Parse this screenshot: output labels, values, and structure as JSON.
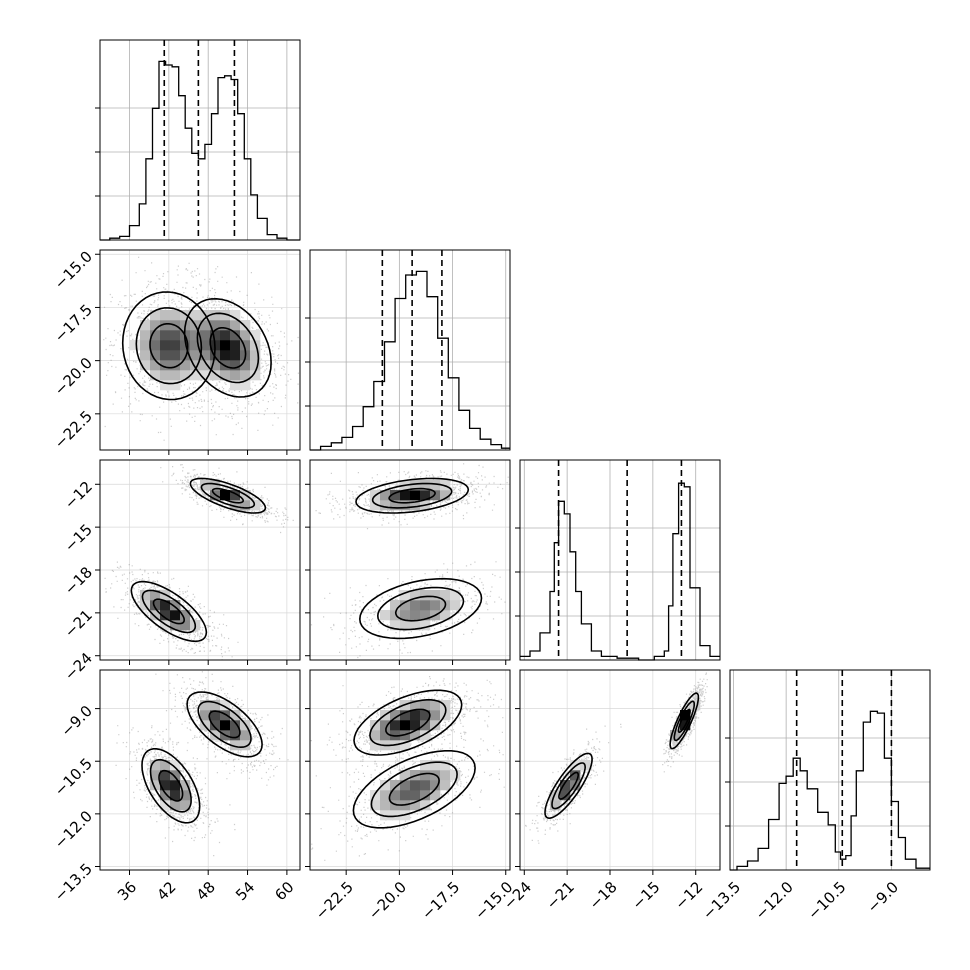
{
  "chart_data": {
    "type": "corner",
    "title": "",
    "grid": true,
    "colors": {
      "line": "#000000",
      "grid": "#b0b0b0",
      "density_dark": "#000000",
      "density_light": "#ffffff"
    },
    "parameters": [
      {
        "label": "",
        "ticks": [
          36,
          42,
          48,
          54,
          60
        ],
        "tick_labels": [
          "36",
          "42",
          "48",
          "54",
          "60"
        ],
        "range": [
          31.5,
          62.0
        ]
      },
      {
        "label": "",
        "ticks": [
          -22.5,
          -20.0,
          -17.5,
          -15.0
        ],
        "tick_labels": [
          "−22.5",
          "−20.0",
          "−17.5",
          "−15.0"
        ],
        "range": [
          -24.2,
          -14.8
        ]
      },
      {
        "label": "",
        "ticks": [
          -24,
          -21,
          -18,
          -15,
          -12
        ],
        "tick_labels": [
          "−24",
          "−21",
          "−18",
          "−15",
          "−12"
        ],
        "range": [
          -24.3,
          -10.3
        ]
      },
      {
        "label": "",
        "ticks": [
          -13.5,
          -12.0,
          -10.5,
          -9.0
        ],
        "tick_labels": [
          "−13.5",
          "−12.0",
          "−10.5",
          "−9.0"
        ],
        "range": [
          -13.6,
          -7.9
        ]
      }
    ],
    "histograms": [
      {
        "param": 0,
        "quantiles": [
          41.3,
          46.5,
          52.0
        ],
        "bin_edges": [
          31.5,
          33.0,
          34.5,
          36.0,
          37.5,
          38.5,
          39.5,
          40.5,
          41.5,
          42.5,
          43.5,
          44.5,
          45.5,
          46.5,
          47.5,
          48.5,
          49.5,
          50.5,
          51.5,
          52.5,
          53.5,
          54.5,
          55.5,
          57.0,
          58.5,
          60.0,
          62.0
        ],
        "counts": [
          0,
          0.01,
          0.02,
          0.08,
          0.2,
          0.45,
          0.73,
          0.99,
          0.97,
          0.96,
          0.8,
          0.62,
          0.48,
          0.45,
          0.53,
          0.7,
          0.9,
          0.91,
          0.89,
          0.7,
          0.45,
          0.25,
          0.12,
          0.03,
          0.01,
          0
        ]
      },
      {
        "param": 1,
        "quantiles": [
          -20.8,
          -19.4,
          -18.0
        ],
        "bin_edges": [
          -24.2,
          -23.7,
          -23.2,
          -22.7,
          -22.2,
          -21.7,
          -21.2,
          -20.7,
          -20.2,
          -19.7,
          -19.2,
          -18.7,
          -18.2,
          -17.7,
          -17.2,
          -16.7,
          -16.2,
          -15.7,
          -15.2,
          -14.8
        ],
        "counts": [
          0.0,
          0.02,
          0.04,
          0.07,
          0.13,
          0.24,
          0.38,
          0.6,
          0.84,
          0.97,
          0.99,
          0.85,
          0.62,
          0.4,
          0.22,
          0.12,
          0.06,
          0.03,
          0.01
        ]
      },
      {
        "param": 2,
        "quantiles": [
          -21.6,
          -16.8,
          -13.0
        ],
        "bin_edges": [
          -24.3,
          -23.6,
          -22.9,
          -22.2,
          -21.9,
          -21.6,
          -21.2,
          -20.8,
          -20.4,
          -20.0,
          -19.3,
          -18.6,
          -17.5,
          -16.0,
          -14.9,
          -14.2,
          -13.9,
          -13.6,
          -13.2,
          -12.8,
          -12.4,
          -11.7,
          -11.0,
          -10.3
        ],
        "counts": [
          0.02,
          0.05,
          0.15,
          0.38,
          0.65,
          0.88,
          0.81,
          0.6,
          0.38,
          0.2,
          0.05,
          0.02,
          0.01,
          0.0,
          0.02,
          0.05,
          0.3,
          0.7,
          0.98,
          0.96,
          0.4,
          0.08,
          0.02
        ]
      },
      {
        "param": 3,
        "quantiles": [
          -11.7,
          -10.4,
          -9.0
        ],
        "bin_edges": [
          -13.6,
          -13.4,
          -13.1,
          -12.8,
          -12.5,
          -12.2,
          -12.0,
          -11.8,
          -11.6,
          -11.4,
          -11.1,
          -10.8,
          -10.6,
          -10.45,
          -10.3,
          -10.15,
          -10.0,
          -9.8,
          -9.6,
          -9.4,
          -9.2,
          -9.0,
          -8.8,
          -8.6,
          -8.3,
          -7.9
        ],
        "counts": [
          0.0,
          0.02,
          0.05,
          0.12,
          0.28,
          0.48,
          0.52,
          0.62,
          0.55,
          0.45,
          0.32,
          0.25,
          0.1,
          0.06,
          0.08,
          0.3,
          0.55,
          0.82,
          0.88,
          0.87,
          0.62,
          0.38,
          0.18,
          0.06,
          0.01
        ]
      }
    ],
    "pairs": [
      {
        "x_param": 0,
        "y_param": 1,
        "modes": [
          {
            "cx": 42.0,
            "cy": -19.3,
            "sx": 3.2,
            "sy": 1.15,
            "rho": -0.05,
            "w": 1.0
          },
          {
            "cx": 51.0,
            "cy": -19.4,
            "sx": 3.0,
            "sy": 1.05,
            "rho": -0.3,
            "w": 1.2
          }
        ]
      },
      {
        "x_param": 0,
        "y_param": 2,
        "modes": [
          {
            "cx": 51.0,
            "cy": -12.8,
            "sx": 2.6,
            "sy": 0.55,
            "rho": -0.7,
            "w": 1.0
          },
          {
            "cx": 42.0,
            "cy": -20.9,
            "sx": 2.6,
            "sy": 0.95,
            "rho": -0.7,
            "w": 1.0
          }
        ]
      },
      {
        "x_param": 0,
        "y_param": 3,
        "modes": [
          {
            "cx": 50.5,
            "cy": -9.45,
            "sx": 2.6,
            "sy": 0.42,
            "rho": -0.62,
            "w": 1.0
          },
          {
            "cx": 42.3,
            "cy": -11.2,
            "sx": 2.0,
            "sy": 0.48,
            "rho": -0.55,
            "w": 1.0
          }
        ]
      },
      {
        "x_param": 1,
        "y_param": 2,
        "modes": [
          {
            "cx": -19.4,
            "cy": -12.8,
            "sx": 1.2,
            "sy": 0.55,
            "rho": 0.35,
            "w": 1.0
          },
          {
            "cx": -19.0,
            "cy": -20.7,
            "sx": 1.3,
            "sy": 0.95,
            "rho": 0.35,
            "w": 0.65
          }
        ]
      },
      {
        "x_param": 1,
        "y_param": 3,
        "modes": [
          {
            "cx": -19.6,
            "cy": -9.4,
            "sx": 1.15,
            "sy": 0.42,
            "rho": 0.55,
            "w": 1.0
          },
          {
            "cx": -19.3,
            "cy": -11.3,
            "sx": 1.3,
            "sy": 0.5,
            "rho": 0.55,
            "w": 0.75
          }
        ]
      },
      {
        "x_param": 2,
        "y_param": 3,
        "modes": [
          {
            "cx": -12.8,
            "cy": -9.35,
            "sx": 0.45,
            "sy": 0.36,
            "rho": 0.85,
            "w": 1.0
          },
          {
            "cx": -20.9,
            "cy": -11.2,
            "sx": 0.75,
            "sy": 0.42,
            "rho": 0.82,
            "w": 0.75
          }
        ]
      }
    ]
  }
}
